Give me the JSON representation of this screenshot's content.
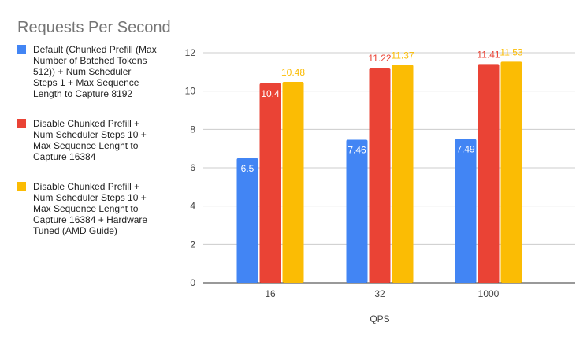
{
  "chart_data": {
    "type": "bar",
    "title": "Requests Per Second",
    "xlabel": "QPS",
    "ylabel": "",
    "categories": [
      "16",
      "32",
      "1000"
    ],
    "ylim": [
      0,
      12
    ],
    "yticks": [
      0,
      2,
      4,
      6,
      8,
      10,
      12
    ],
    "grid": true,
    "legend_position": "left",
    "series": [
      {
        "name": "Default (Chunked Prefill (Max Number of Batched Tokens 512)) + Num Scheduler Steps 1 + Max Sequence Length to Capture 8192",
        "legend_lines": [
          "Default (Chunked Prefill (Max",
          "Number of Batched Tokens",
          "512)) + Num Scheduler",
          "Steps 1 + Max Sequence",
          "Length to Capture 8192"
        ],
        "color": "#4285f4",
        "values": [
          6.5,
          7.46,
          7.49
        ],
        "labels": [
          "6.5",
          "7.46",
          "7.49"
        ]
      },
      {
        "name": "Disable Chunked Prefill + Num Scheduler Steps 10 + Max Sequence Lenght to Capture 16384",
        "legend_lines": [
          "Disable Chunked Prefill +",
          "Num Scheduler Steps 10 +",
          "Max Sequence Lenght to",
          "Capture 16384"
        ],
        "color": "#ea4335",
        "values": [
          10.4,
          11.22,
          11.41
        ],
        "labels": [
          "10.4",
          "11.22",
          "11.41"
        ]
      },
      {
        "name": "Disable Chunked Prefill + Num Scheduler Steps 10 + Max Sequence Lenght to Capture 16384 + Hardware Tuned (AMD Guide)",
        "legend_lines": [
          "Disable Chunked Prefill +",
          "Num Scheduler Steps 10 +",
          "Max Sequence Lenght to",
          "Capture 16384 + Hardware",
          "Tuned (AMD Guide)"
        ],
        "color": "#fbbc04",
        "values": [
          10.48,
          11.37,
          11.53
        ],
        "labels": [
          "10.48",
          "11.37",
          "11.53"
        ]
      }
    ]
  }
}
